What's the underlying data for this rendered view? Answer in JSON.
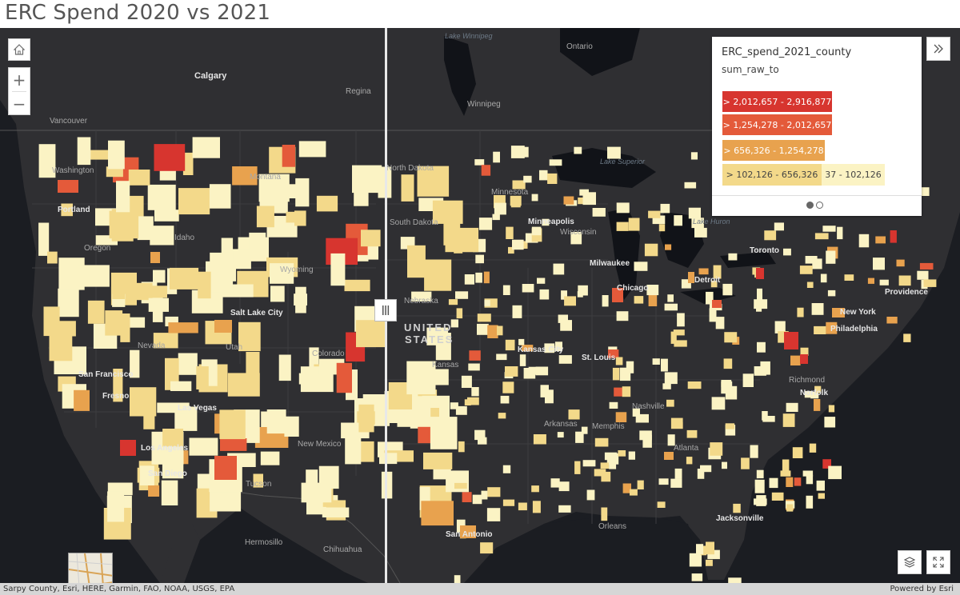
{
  "title": "ERC Spend 2020 vs 2021",
  "controls": {
    "home_icon": "home-icon",
    "zoom_in": "+",
    "zoom_out": "−",
    "collapse_icon": "double-chevron-right-icon",
    "layers_icon": "layers-icon",
    "fullscreen_icon": "fullscreen-icon",
    "swipe_handle_icon": "vertical-grip-icon"
  },
  "legend": {
    "layer_title": "ERC_spend_2021_county",
    "field": "sum_raw_to",
    "classes": [
      {
        "label": "> 2,012,657 - 2,916,877",
        "color": "#d7352f"
      },
      {
        "label": "> 1,254,278 - 2,012,657",
        "color": "#e45a3a"
      },
      {
        "label": "> 656,326 - 1,254,278",
        "color": "#e8a24e"
      },
      {
        "label": "> 102,126 - 656,326",
        "color": "#f3d98a"
      },
      {
        "label": "37 - 102,126",
        "color": "#fbf3c4"
      }
    ],
    "pages": 2,
    "active_page": 1
  },
  "map_labels": {
    "cities": [
      "Calgary",
      "Regina",
      "Winnipeg",
      "Vancouver",
      "Portland",
      "Chicago",
      "Detroit",
      "Toronto",
      "New York",
      "Philadelphia",
      "Milwaukee",
      "Minneapolis",
      "Salt Lake City",
      "San Francisco",
      "Fresno",
      "Las Vegas",
      "Los Angeles",
      "San Diego",
      "Tucson",
      "Kansas City",
      "St. Louis",
      "Nashville",
      "Memphis",
      "Atlanta",
      "Richmond",
      "Norfolk",
      "Jacksonville",
      "Orleans",
      "San Antonio",
      "Hermosillo",
      "Chihuahua",
      "Providence"
    ],
    "regions": [
      "Montana",
      "Idaho",
      "Oregon",
      "Wyoming",
      "Nevada",
      "Utah",
      "Colorado",
      "New Mexico",
      "North Dakota",
      "South Dakota",
      "Minnesota",
      "Nebraska",
      "Kansas",
      "Wisconsin",
      "Ontario",
      "Arkansas",
      "Washington"
    ],
    "countries": [
      "UNITED",
      "STATES"
    ],
    "water": [
      "Lake Winnipeg",
      "Lake Superior",
      "Lake Huron"
    ]
  },
  "attribution": {
    "sources": "Sarpy County, Esri, HERE, Garmin, FAO, NOAA, USGS, EPA",
    "powered_by": "Powered by Esri"
  }
}
